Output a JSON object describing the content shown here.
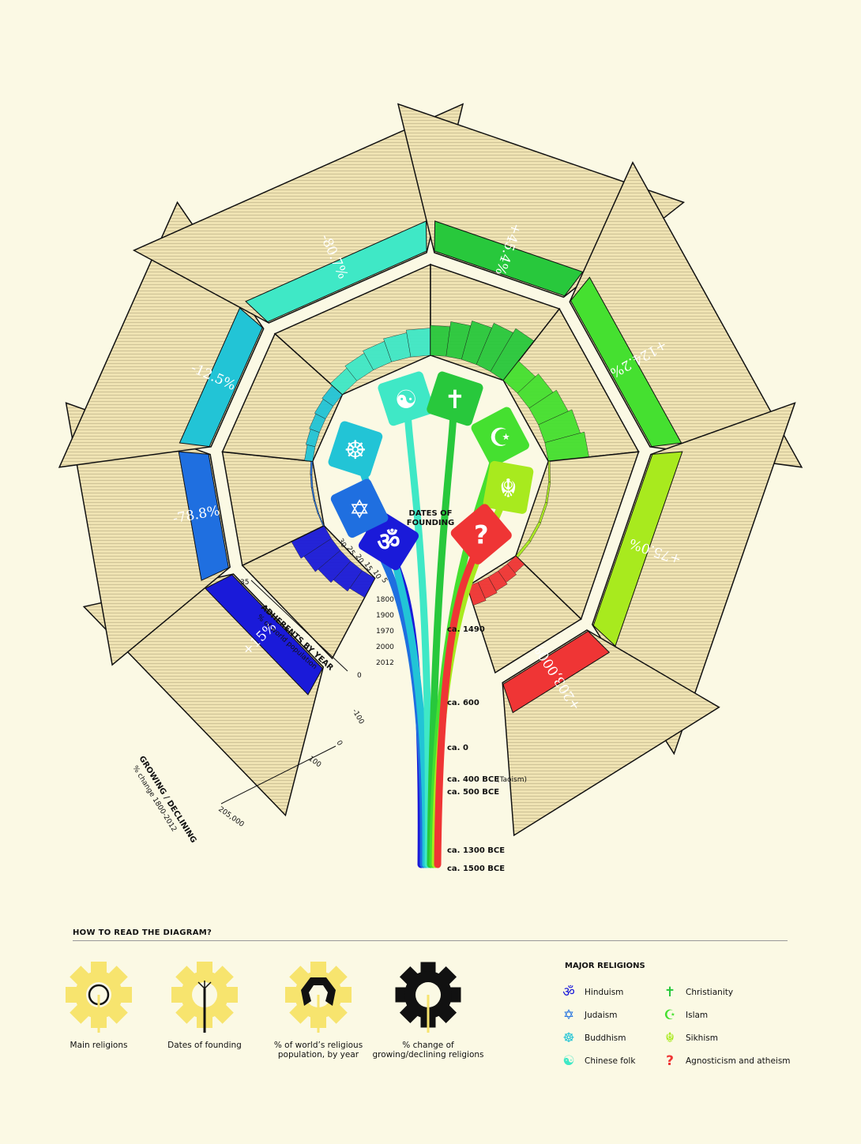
{
  "chart_data": {
    "type": "radial-infographic",
    "religions": [
      {
        "name": "Hinduism",
        "icon": "om-icon",
        "glyph": "ॐ",
        "color": "#1a1ad9",
        "change": "+15%",
        "founding": "ca. 1500 BCE"
      },
      {
        "name": "Judaism",
        "icon": "star-of-david-icon",
        "glyph": "✡",
        "color": "#1f6fe0",
        "change": "-78.8%",
        "founding": "ca. 1300 BCE"
      },
      {
        "name": "Buddhism",
        "icon": "dharma-wheel-icon",
        "glyph": "☸",
        "color": "#22c4d6",
        "change": "-12.5%",
        "founding": "ca. 500 BCE"
      },
      {
        "name": "Chinese folk",
        "icon": "yin-yang-icon",
        "glyph": "☯",
        "color": "#3fe8c6",
        "change": "-80.7%",
        "founding": "ca. 400 BCE"
      },
      {
        "name": "Christianity",
        "icon": "cross-icon",
        "glyph": "✝",
        "color": "#28c83c",
        "change": "+45.4%",
        "founding": "ca. 0"
      },
      {
        "name": "Islam",
        "icon": "crescent-icon",
        "glyph": "☪",
        "color": "#45e030",
        "change": "+124.2%",
        "founding": "ca. 600"
      },
      {
        "name": "Sikhism",
        "icon": "khanda-icon",
        "glyph": "☬",
        "color": "#a8ea1e",
        "change": "+75.0%",
        "founding": "ca. 1490"
      },
      {
        "name": "Agnosticism and atheism",
        "icon": "question-mark-icon",
        "glyph": "?",
        "color": "#ef3535",
        "change": "+203,000%",
        "founding": ""
      }
    ],
    "founding_dates": [
      "ca. 1490",
      "ca. 600",
      "ca. 0",
      "ca. 400 BCE",
      "(Taoism)",
      "ca. 500 BCE",
      "ca. 1300 BCE",
      "ca. 1500 BCE"
    ],
    "dates_label": [
      "DATES OF",
      "FOUNDING"
    ],
    "adherents_axis": {
      "title": "ADHERENTS BY YEAR",
      "subtitle": "% of world population",
      "ticks": [
        "30",
        "25",
        "20",
        "15",
        "10",
        "5"
      ],
      "max_tick": "35",
      "zero": "0",
      "years": [
        "1800",
        "1900",
        "1970",
        "2000",
        "2012"
      ]
    },
    "change_axis": {
      "title": "GROWING / DECLINING",
      "subtitle": "% change 1800-2012",
      "ticks": [
        "-100",
        "0",
        "100",
        "205,000"
      ]
    }
  },
  "legend": {
    "title": "HOW TO READ THE DIAGRAM?",
    "items": [
      "Main religions",
      "Dates of founding",
      "% of world’s religious population, by year",
      "% change of growing/declining religions"
    ],
    "major_title": "MAJOR RELIGIONS"
  },
  "colors": {
    "background": "#fbf9e4",
    "segment": "#efe3b3",
    "legend_yellow": "#f7e46e"
  }
}
